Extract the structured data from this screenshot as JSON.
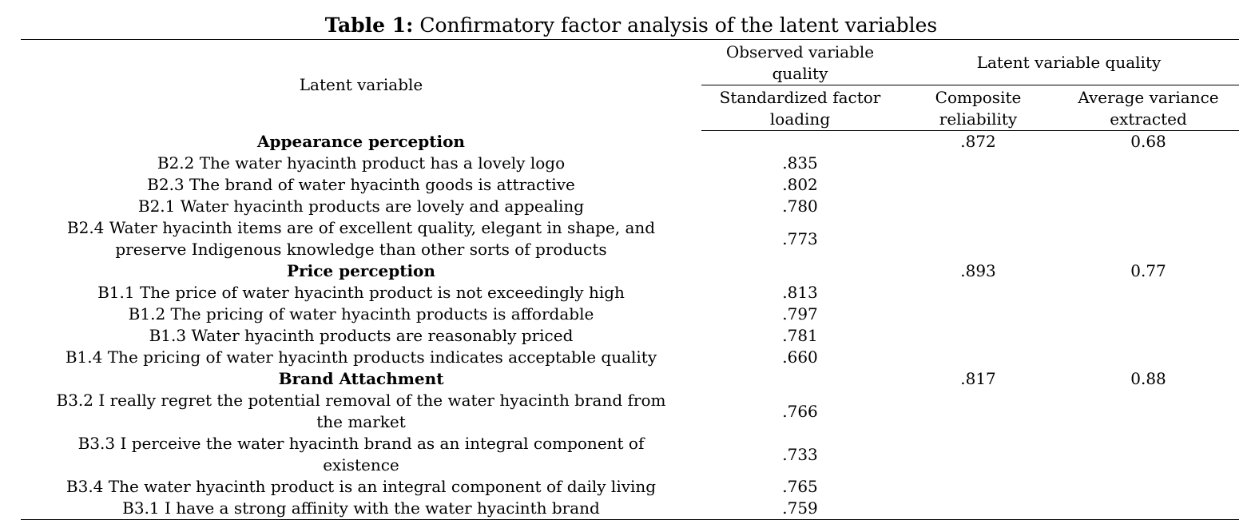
{
  "caption": {
    "label": "Table 1:",
    "text": "Confirmatory factor analysis of the latent variables"
  },
  "headers": {
    "latent_variable": "Latent variable",
    "observed_quality": "Observed variable quality",
    "latent_quality": "Latent variable quality",
    "std_loading": "Standardized factor loading",
    "composite_reliability": "Composite reliability",
    "ave": "Average variance extracted"
  },
  "groups": [
    {
      "name": "Appearance perception",
      "cr": ".872",
      "ave": "0.68",
      "items": [
        {
          "text": "B2.2 The water hyacinth product has a lovely logo",
          "loading": ".835"
        },
        {
          "text": "B2.3 The brand of water hyacinth goods is attractive",
          "loading": ".802"
        },
        {
          "text": "B2.1 Water hyacinth products are lovely and appealing",
          "loading": ".780"
        },
        {
          "text": "B2.4 Water hyacinth items are of excellent quality, elegant in shape, and preserve Indigenous knowledge than other sorts of products",
          "loading": ".773"
        }
      ]
    },
    {
      "name": "Price perception",
      "cr": ".893",
      "ave": "0.77",
      "items": [
        {
          "text": "B1.1 The price of water hyacinth product is not exceedingly high",
          "loading": ".813"
        },
        {
          "text": "B1.2 The pricing of water hyacinth products is affordable",
          "loading": ".797"
        },
        {
          "text": "B1.3 Water hyacinth products are reasonably priced",
          "loading": ".781"
        },
        {
          "text": "B1.4 The pricing of water hyacinth products indicates acceptable quality",
          "loading": ".660"
        }
      ]
    },
    {
      "name": "Brand Attachment",
      "cr": ".817",
      "ave": "0.88",
      "items": [
        {
          "text": "B3.2 I really regret the potential removal of the water hyacinth brand from the market",
          "loading": ".766"
        },
        {
          "text": "B3.3 I perceive the water hyacinth brand as an integral component of existence",
          "loading": ".733"
        },
        {
          "text": "B3.4 The water hyacinth product is an integral component of daily living",
          "loading": ".765"
        },
        {
          "text": "B3.1 I have a strong affinity with the water hyacinth brand",
          "loading": ".759"
        }
      ]
    }
  ]
}
